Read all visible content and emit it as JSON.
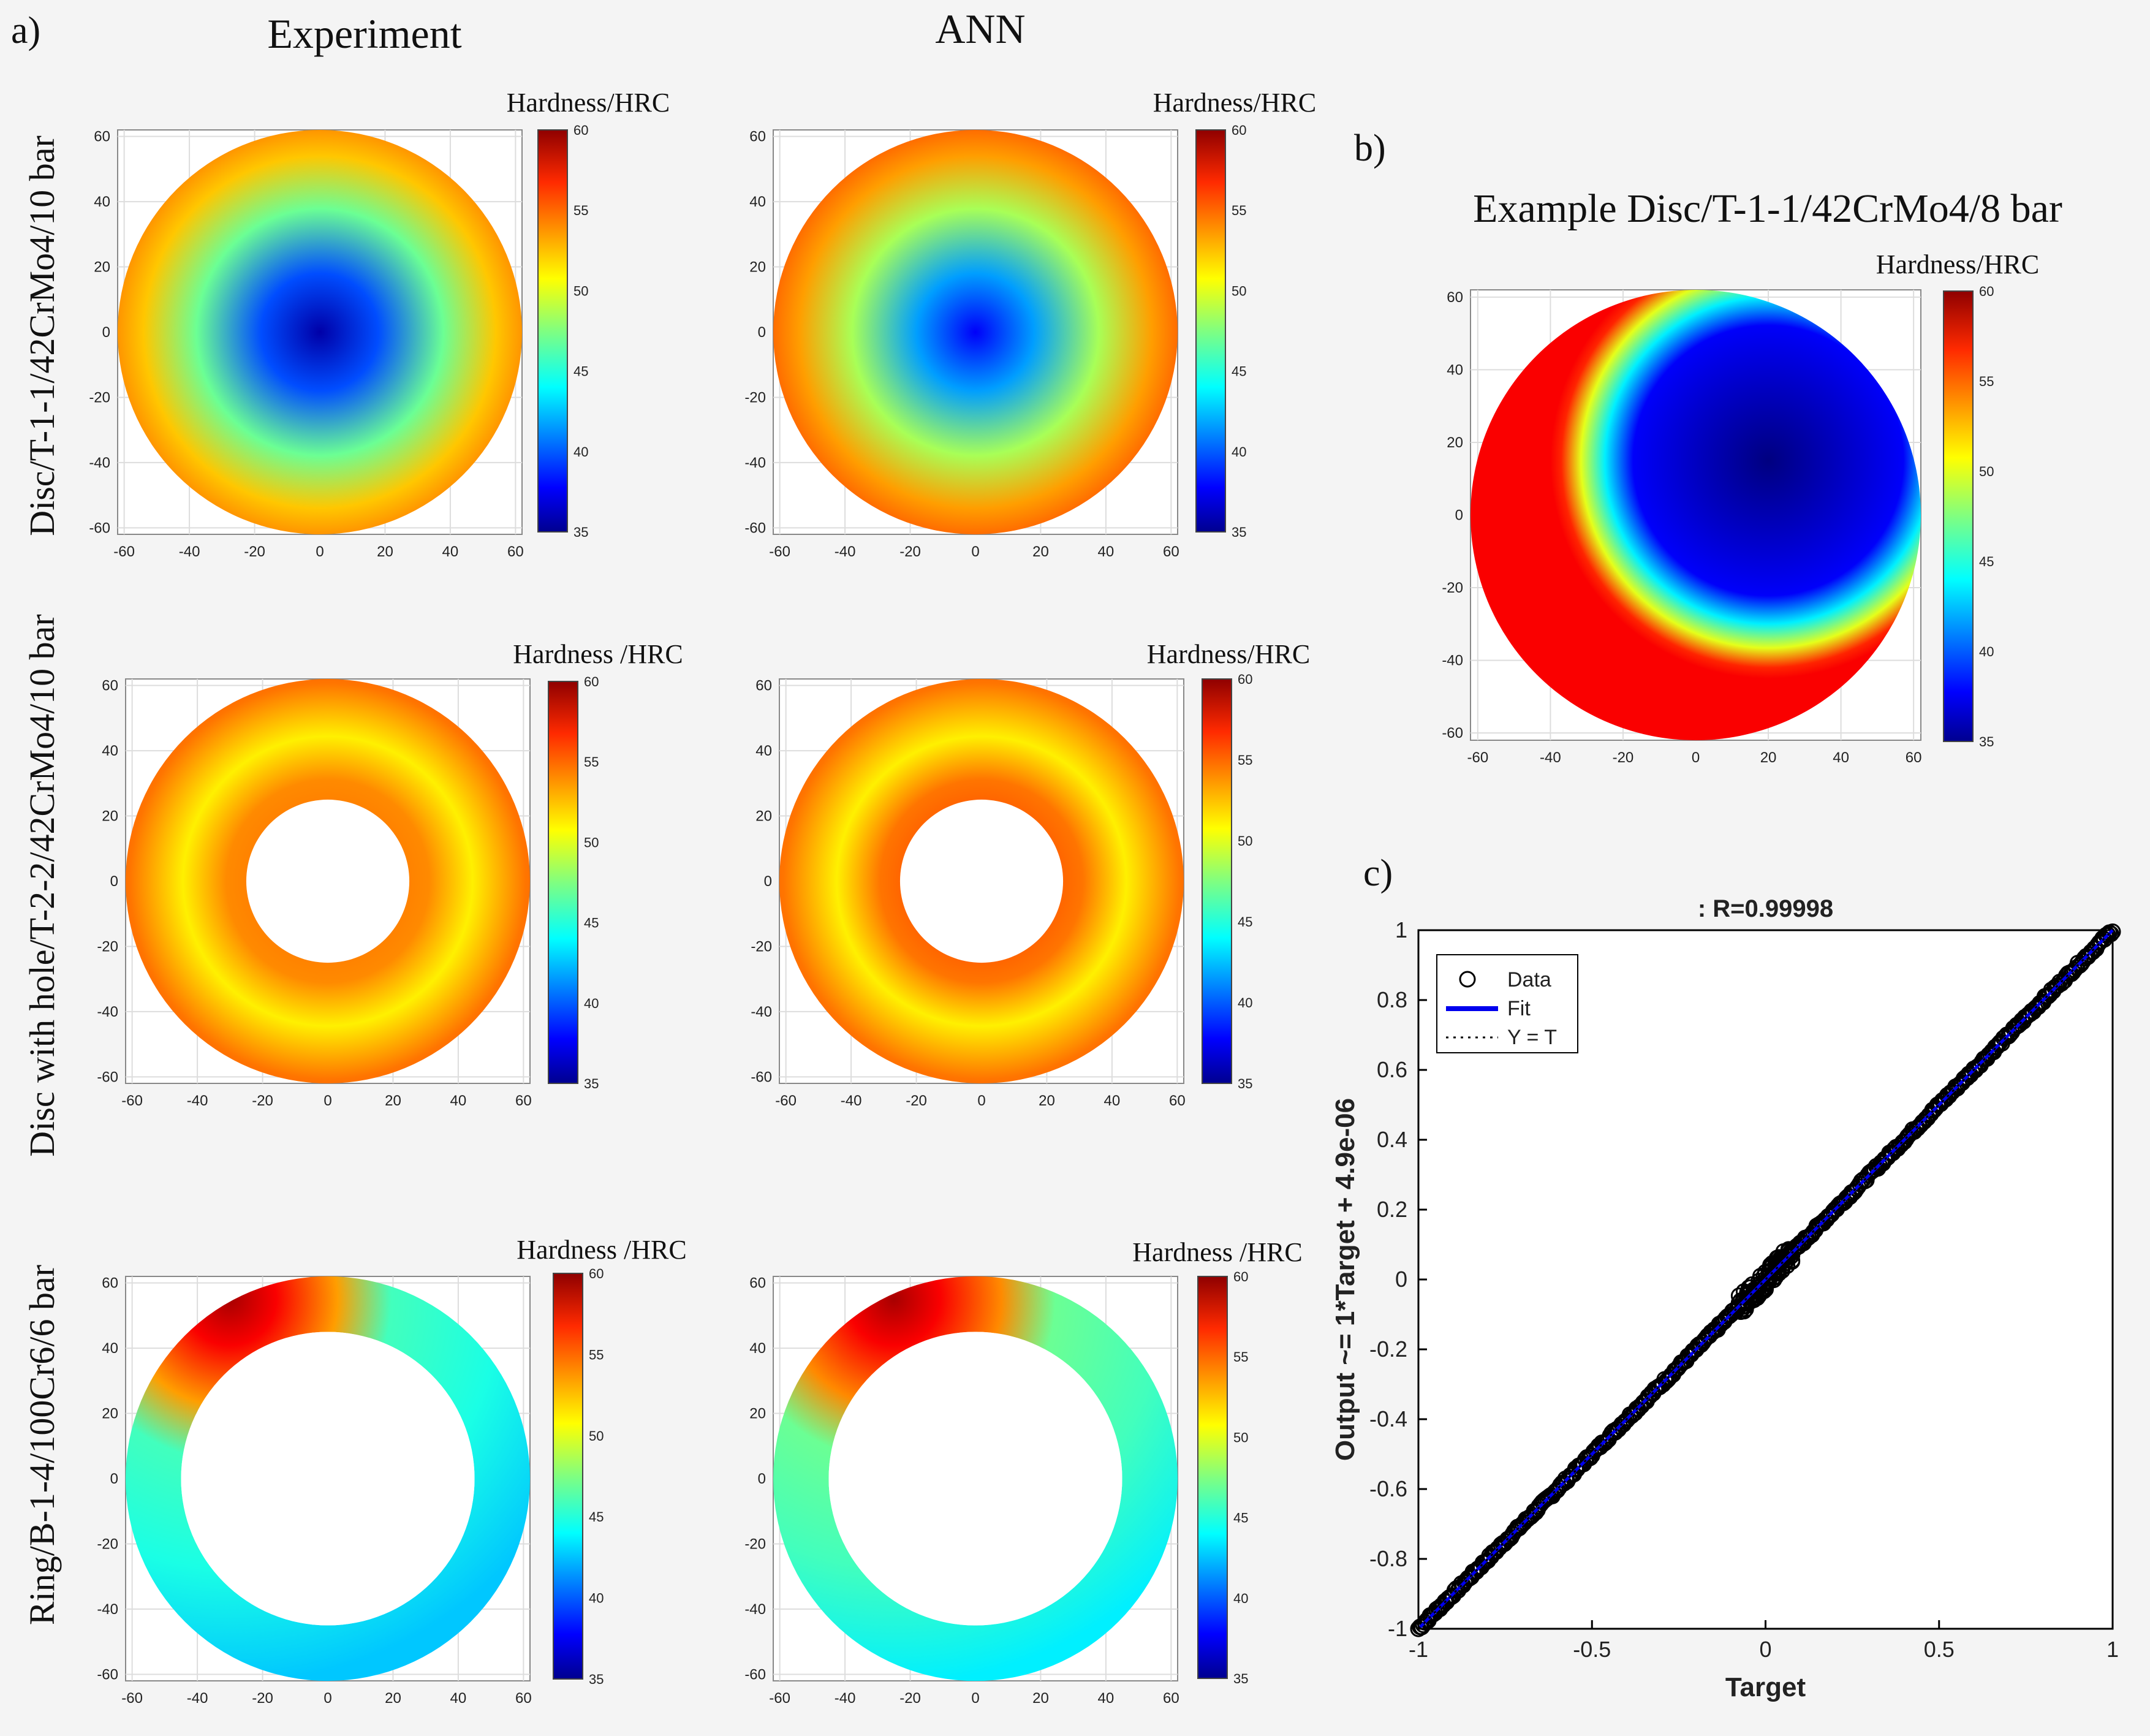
{
  "figure": {
    "panel_a_label": "a)",
    "panel_b_label": "b)",
    "panel_c_label": "c)",
    "col_experiment": "Experiment",
    "col_ann": "ANN",
    "row_labels": [
      "Disc/T-1-1/42CrMo4/10 bar",
      "Disc with hole/T-2-2/42CrMo4/10 bar",
      "Ring/B-1-4/100Cr6/6 bar"
    ],
    "panel_b_title": "Example Disc/T-1-1/42CrMo4/8 bar"
  },
  "colors": {
    "fit_line": "#0000ee",
    "markers": "#000000",
    "background": "#f4f4f4"
  },
  "chart_data": [
    {
      "type": "heatmap",
      "id": "exp-disc",
      "colorbar_title": "Hardness/HRC",
      "colorbar_range": [
        35,
        60
      ],
      "colorbar_ticks": [
        35,
        40,
        45,
        50,
        55,
        60
      ],
      "xlim": [
        -62,
        62
      ],
      "ylim": [
        -62,
        62
      ],
      "xticks": [
        -60,
        -40,
        -20,
        0,
        20,
        40,
        60
      ],
      "yticks": [
        -60,
        -40,
        -20,
        0,
        20,
        40,
        60
      ],
      "shape": "disc",
      "outer_radius": 62,
      "inner_radius": 0,
      "hardness_center": 36,
      "hardness_edge": 56,
      "center_x": 0,
      "center_y": 0,
      "gradient_span": 45
    },
    {
      "type": "heatmap",
      "id": "ann-disc",
      "colorbar_title": "Hardness/HRC",
      "colorbar_range": [
        35,
        60
      ],
      "colorbar_ticks": [
        35,
        40,
        45,
        50,
        55,
        60
      ],
      "xlim": [
        -62,
        62
      ],
      "ylim": [
        -62,
        62
      ],
      "xticks": [
        -60,
        -40,
        -20,
        0,
        20,
        40,
        60
      ],
      "yticks": [
        -60,
        -40,
        -20,
        0,
        20,
        40,
        60
      ],
      "shape": "disc",
      "outer_radius": 62,
      "inner_radius": 0,
      "hardness_center": 38,
      "hardness_edge": 57,
      "center_x": 0,
      "center_y": 0,
      "gradient_span": 45
    },
    {
      "type": "heatmap",
      "id": "exp-hole",
      "colorbar_title": "Hardness /HRC",
      "colorbar_range": [
        35,
        60
      ],
      "colorbar_ticks": [
        35,
        40,
        45,
        50,
        55,
        60
      ],
      "xlim": [
        -62,
        62
      ],
      "ylim": [
        -62,
        62
      ],
      "xticks": [
        -60,
        -40,
        -20,
        0,
        20,
        40,
        60
      ],
      "yticks": [
        -60,
        -40,
        -20,
        0,
        20,
        40,
        60
      ],
      "shape": "annulus",
      "outer_radius": 62,
      "inner_radius": 25,
      "hardness_center": 50,
      "hardness_edge": 55,
      "center_x": 0,
      "center_y": 0,
      "gradient_span": 37
    },
    {
      "type": "heatmap",
      "id": "ann-hole",
      "colorbar_title": "Hardness/HRC",
      "colorbar_range": [
        35,
        60
      ],
      "colorbar_ticks": [
        35,
        40,
        45,
        50,
        55,
        60
      ],
      "xlim": [
        -62,
        62
      ],
      "ylim": [
        -62,
        62
      ],
      "xticks": [
        -60,
        -40,
        -20,
        0,
        20,
        40,
        60
      ],
      "yticks": [
        -60,
        -40,
        -20,
        0,
        20,
        40,
        60
      ],
      "shape": "annulus",
      "outer_radius": 62,
      "inner_radius": 25,
      "hardness_center": 51,
      "hardness_edge": 55,
      "center_x": 0,
      "center_y": 0,
      "gradient_span": 37
    },
    {
      "type": "heatmap",
      "id": "exp-ring",
      "colorbar_title": "Hardness /HRC",
      "colorbar_range": [
        35,
        60
      ],
      "colorbar_ticks": [
        35,
        40,
        45,
        50,
        55,
        60
      ],
      "xlim": [
        -62,
        62
      ],
      "ylim": [
        -62,
        62
      ],
      "xticks": [
        -60,
        -40,
        -20,
        0,
        20,
        40,
        60
      ],
      "yticks": [
        -60,
        -40,
        -20,
        0,
        20,
        40,
        60
      ],
      "shape": "ring",
      "outer_radius": 62,
      "inner_radius": 45,
      "hardness_high": 59,
      "hardness_low": 45,
      "hot_x": -30,
      "hot_y": 55
    },
    {
      "type": "heatmap",
      "id": "ann-ring",
      "colorbar_title": "Hardness /HRC",
      "colorbar_range": [
        35,
        60
      ],
      "colorbar_ticks": [
        35,
        40,
        45,
        50,
        55,
        60
      ],
      "xlim": [
        -62,
        62
      ],
      "ylim": [
        -62,
        62
      ],
      "xticks": [
        -60,
        -40,
        -20,
        0,
        20,
        40,
        60
      ],
      "yticks": [
        -60,
        -40,
        -20,
        0,
        20,
        40,
        60
      ],
      "shape": "ring",
      "outer_radius": 62,
      "inner_radius": 45,
      "hardness_high": 59,
      "hardness_low": 46,
      "hot_x": -25,
      "hot_y": 55
    },
    {
      "type": "heatmap",
      "id": "example-disc",
      "colorbar_title": "Hardness/HRC",
      "colorbar_range": [
        35,
        60
      ],
      "colorbar_ticks": [
        35,
        40,
        45,
        50,
        55,
        60
      ],
      "xlim": [
        -62,
        62
      ],
      "ylim": [
        -62,
        62
      ],
      "xticks": [
        -60,
        -40,
        -20,
        0,
        20,
        40,
        60
      ],
      "yticks": [
        -60,
        -40,
        -20,
        0,
        20,
        40,
        60
      ],
      "shape": "disc",
      "outer_radius": 62,
      "inner_radius": 0,
      "hardness_center": 35,
      "hardness_edge": 57,
      "center_x": 20,
      "center_y": 15,
      "gradient_span": 30,
      "plateau": 38
    },
    {
      "type": "scatter",
      "id": "regression",
      "title": ": R=0.99998",
      "xlabel": "Target",
      "ylabel": "Output ~= 1*Target + 4.9e-06",
      "xlim": [
        -1,
        1
      ],
      "ylim": [
        -1,
        1
      ],
      "xticks": [
        -1,
        -0.5,
        0,
        0.5,
        1
      ],
      "xtick_labels": [
        "-1",
        "-0.5",
        "0",
        "0.5",
        "1"
      ],
      "yticks": [
        -1,
        -0.8,
        -0.6,
        -0.4,
        -0.2,
        0,
        0.2,
        0.4,
        0.6,
        0.8,
        1
      ],
      "ytick_labels": [
        "-1",
        "-0.8",
        "-0.6",
        "-0.4",
        "-0.2",
        "0",
        "0.2",
        "0.4",
        "0.6",
        "0.8",
        "1"
      ],
      "fit_slope": 1,
      "fit_intercept": 4.9e-06,
      "legend": [
        "Data",
        "Fit",
        "Y = T"
      ],
      "legend_position": "top-left"
    }
  ]
}
